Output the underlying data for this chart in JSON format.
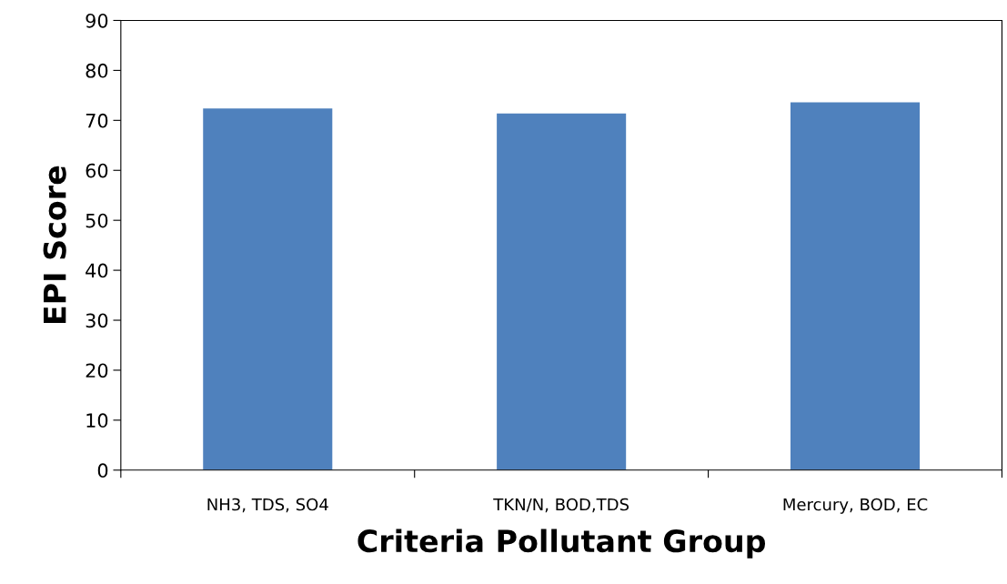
{
  "chart_data": {
    "type": "bar",
    "xlabel": "Criteria Pollutant Group",
    "ylabel": "EPI Score",
    "categories": [
      "NH3, TDS, SO4",
      "TKN/N, BOD,TDS",
      "Mercury, BOD, EC"
    ],
    "values": [
      72.4,
      71.4,
      73.6
    ],
    "color": "#4f81bd",
    "ylim": [
      0,
      90
    ],
    "yticks": [
      0,
      10,
      20,
      30,
      40,
      50,
      60,
      70,
      80,
      90
    ],
    "grid": false,
    "legend": false
  }
}
